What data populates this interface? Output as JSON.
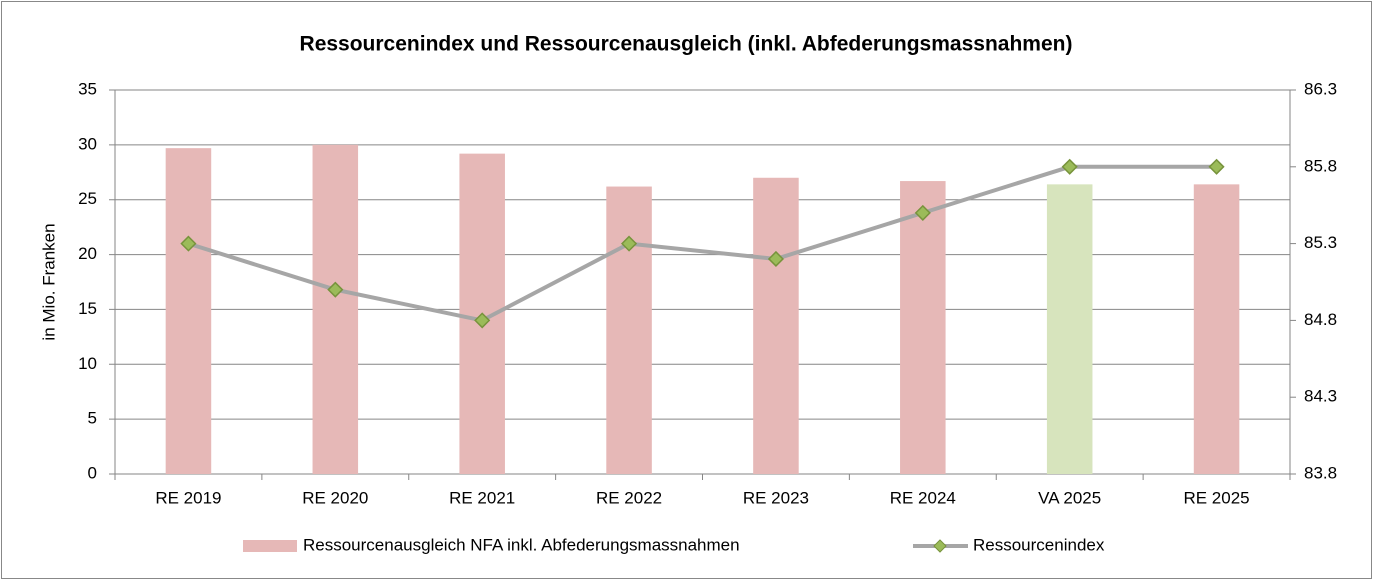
{
  "chart_data": {
    "type": "bar-line",
    "title": "Ressourcenindex und Ressourcenausgleich (inkl. Abfederungsmassnahmen)",
    "y_label": "in  Mio. Franken",
    "categories": [
      "RE 2019",
      "RE 2020",
      "RE 2021",
      "RE 2022",
      "RE 2023",
      "RE 2024",
      "VA 2025",
      "RE 2025"
    ],
    "series": [
      {
        "name": "Ressourcenausgleich NFA inkl. Abfederungsmassnahmen",
        "type": "bar",
        "color": "#e6b8b7",
        "colors": [
          "#e6b8b7",
          "#e6b8b7",
          "#e6b8b7",
          "#e6b8b7",
          "#e6b8b7",
          "#e6b8b7",
          "#d7e4bd",
          "#e6b8b7"
        ],
        "values": [
          29.7,
          30.0,
          29.2,
          26.2,
          27.0,
          26.7,
          26.4,
          26.4
        ]
      },
      {
        "name": "Ressourcenindex",
        "type": "line",
        "axis": "y2",
        "color": "#a6a6a6",
        "marker_color": "#9bbb59",
        "values": [
          85.3,
          85.0,
          84.8,
          85.3,
          85.2,
          85.5,
          85.8,
          85.8
        ]
      }
    ],
    "ylim": [
      0,
      35
    ],
    "yticks": [
      0,
      5,
      10,
      15,
      20,
      25,
      30,
      35
    ],
    "y2lim": [
      83.8,
      86.3
    ],
    "y2ticks": [
      83.8,
      84.3,
      84.8,
      85.3,
      85.8,
      86.3
    ],
    "grid": true,
    "legend": "bottom"
  }
}
